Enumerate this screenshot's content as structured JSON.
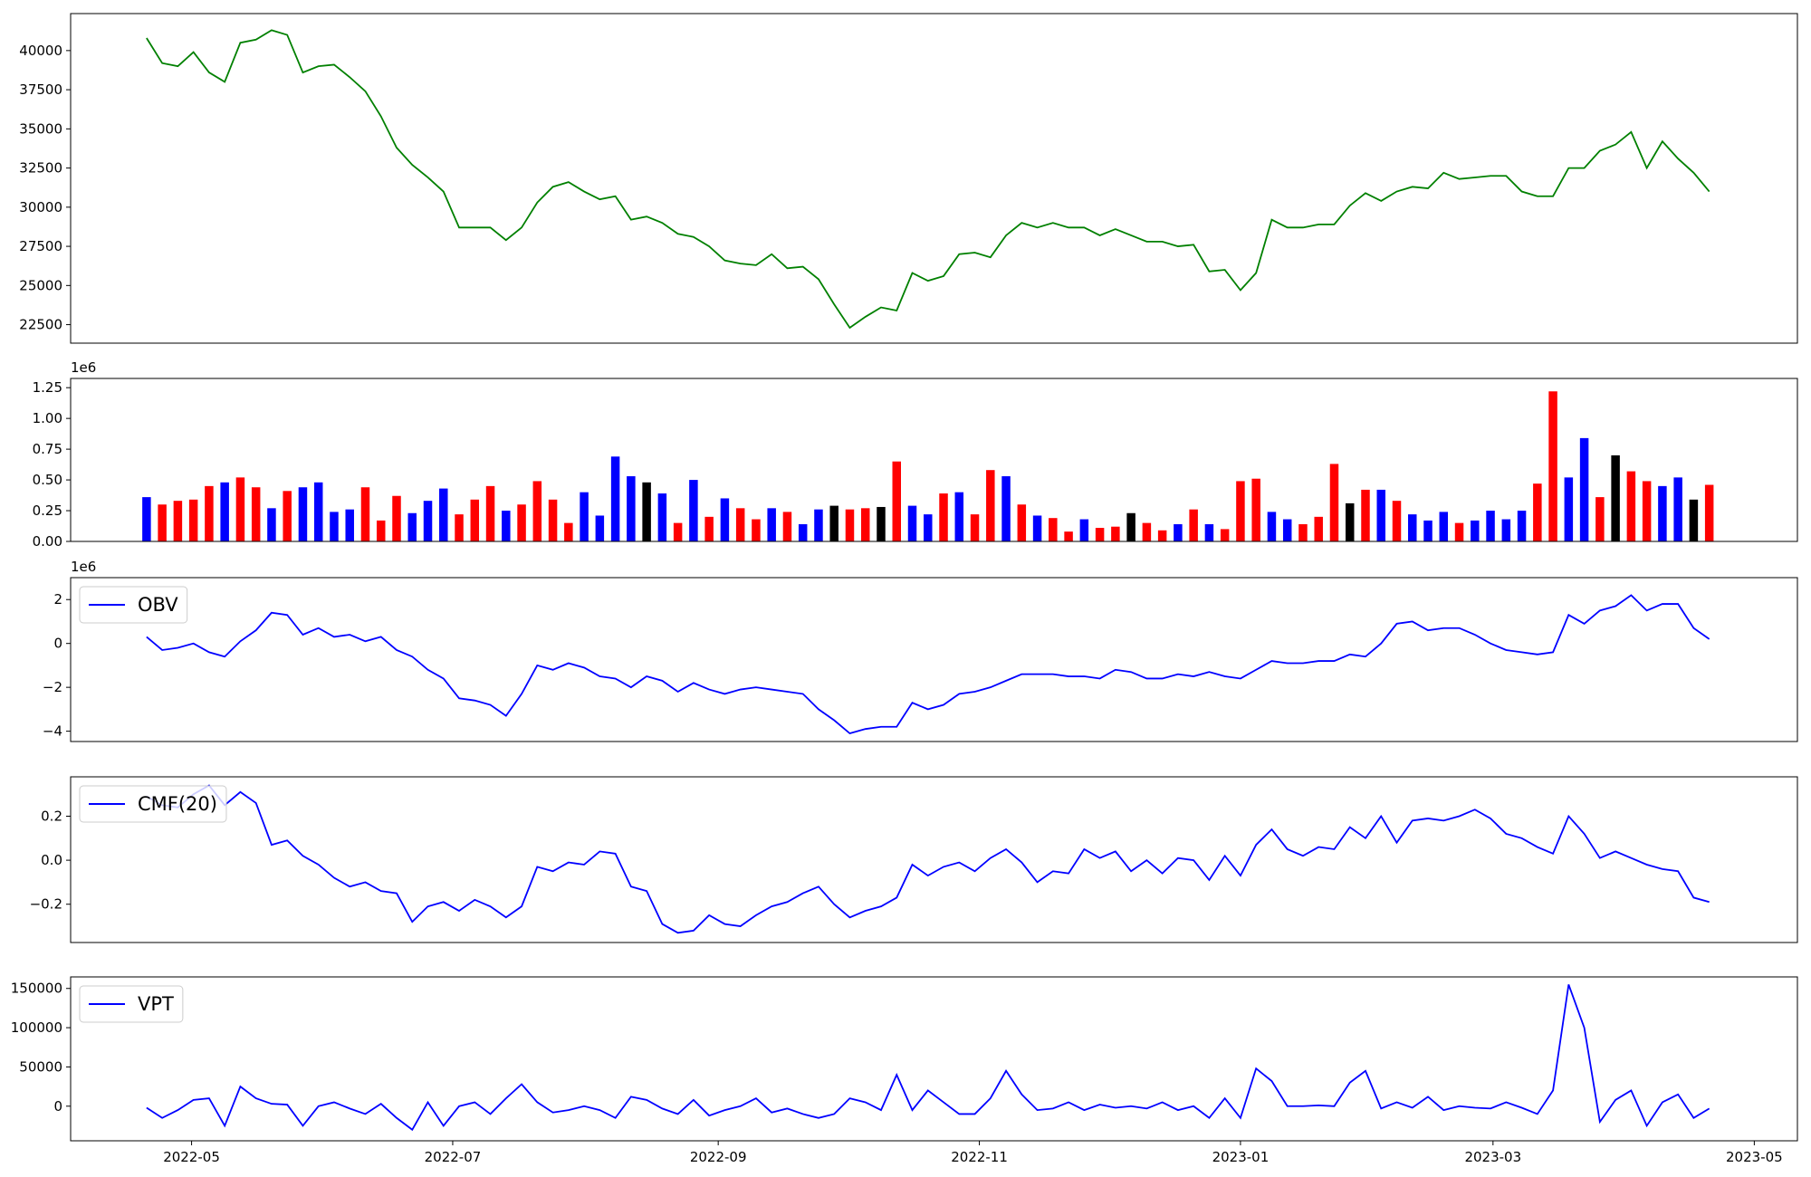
{
  "chart_data": {
    "type": "multi-panel",
    "x": [
      2022.3,
      2022.31,
      2022.32,
      2022.33,
      2022.34,
      2022.35,
      2022.36,
      2022.37,
      2022.38,
      2022.39,
      2022.4,
      2022.41,
      2022.42,
      2022.43,
      2022.44,
      2022.45,
      2022.46,
      2022.47,
      2022.48,
      2022.49,
      2022.5,
      2022.51,
      2022.52,
      2022.53,
      2022.54,
      2022.55,
      2022.56,
      2022.57,
      2022.58,
      2022.59,
      2022.6,
      2022.61,
      2022.62,
      2022.63,
      2022.64,
      2022.65,
      2022.66,
      2022.67,
      2022.68,
      2022.69,
      2022.7,
      2022.71,
      2022.72,
      2022.73,
      2022.74,
      2022.75,
      2022.76,
      2022.77,
      2022.78,
      2022.79,
      2022.8,
      2022.81,
      2022.82,
      2022.83,
      2022.84,
      2022.85,
      2022.86,
      2022.87,
      2022.88,
      2022.89,
      2022.9,
      2022.91,
      2022.92,
      2022.93,
      2022.94,
      2022.95,
      2022.96,
      2022.97,
      2022.98,
      2022.99,
      2023,
      2023.01,
      2023.02,
      2023.03,
      2023.04,
      2023.05,
      2023.06,
      2023.07,
      2023.08,
      2023.09,
      2023.1,
      2023.11,
      2023.12,
      2023.13,
      2023.14,
      2023.15,
      2023.16,
      2023.17,
      2023.18,
      2023.19,
      2023.2,
      2023.21,
      2023.22,
      2023.23,
      2023.24,
      2023.25,
      2023.26,
      2023.27,
      2023.28,
      2023.29,
      2023.3
    ],
    "xlim": [
      2022.2514,
      2023.3564
    ],
    "xticks": [
      {
        "value": 2022.3288,
        "label": "2022-05"
      },
      {
        "value": 2022.4959,
        "label": "2022-07"
      },
      {
        "value": 2022.6658,
        "label": "2022-09"
      },
      {
        "value": 2022.8329,
        "label": "2022-11"
      },
      {
        "value": 2023.0,
        "label": "2023-01"
      },
      {
        "value": 2023.1616,
        "label": "2023-03"
      },
      {
        "value": 2023.3288,
        "label": "2023-05"
      }
    ],
    "panels": [
      {
        "type": "line",
        "ylim": [
          21319,
          42362
        ],
        "yticks": [
          22500,
          25000,
          27500,
          30000,
          32500,
          35000,
          37500,
          40000
        ],
        "series": [
          {
            "color": "#008000",
            "values": [
              40800,
              39200,
              39000,
              39900,
              38600,
              38000,
              40500,
              40700,
              41300,
              41000,
              38600,
              39000,
              39100,
              38300,
              37400,
              35800,
              33800,
              32700,
              31900,
              31000,
              28700,
              28700,
              28700,
              27900,
              28700,
              30300,
              31300,
              31600,
              31000,
              30500,
              30700,
              29200,
              29400,
              29000,
              28300,
              28100,
              27500,
              26600,
              26400,
              26300,
              27000,
              26100,
              26200,
              25400,
              23800,
              22300,
              23000,
              23600,
              23400,
              25800,
              25300,
              25600,
              27000,
              27100,
              26800,
              28200,
              29000,
              28700,
              29000,
              28700,
              28700,
              28200,
              28600,
              28200,
              27800,
              27800,
              27500,
              27600,
              25900,
              26000,
              24700,
              25800,
              29200,
              28700,
              28700,
              28900,
              28900,
              30100,
              30900,
              30400,
              31000,
              31300,
              31200,
              32200,
              31800,
              31900,
              32000,
              32000,
              31000,
              30700,
              30700,
              32500,
              32500,
              33600,
              34000,
              34800,
              32500,
              34200,
              33100,
              32200,
              31000
            ]
          }
        ]
      },
      {
        "type": "bar",
        "ylim": [
          0,
          1325000
        ],
        "offset_label": "1e6",
        "yticks": [
          {
            "value": 0,
            "label": "0.00"
          },
          {
            "value": 250000,
            "label": "0.25"
          },
          {
            "value": 500000,
            "label": "0.50"
          },
          {
            "value": 750000,
            "label": "0.75"
          },
          {
            "value": 1000000,
            "label": "1.00"
          },
          {
            "value": 1250000,
            "label": "1.25"
          }
        ],
        "series": [
          {
            "values": [
              360000,
              300000,
              330000,
              340000,
              450000,
              480000,
              520000,
              440000,
              270000,
              410000,
              440000,
              480000,
              240000,
              260000,
              440000,
              170000,
              370000,
              230000,
              330000,
              430000,
              220000,
              340000,
              450000,
              250000,
              300000,
              490000,
              340000,
              150000,
              400000,
              210000,
              690000,
              530000,
              480000,
              390000,
              150000,
              500000,
              200000,
              350000,
              270000,
              180000,
              270000,
              240000,
              140000,
              260000,
              290000,
              260000,
              270000,
              280000,
              650000,
              290000,
              220000,
              390000,
              400000,
              220000,
              580000,
              530000,
              300000,
              210000,
              190000,
              80000,
              180000,
              110000,
              120000,
              230000,
              150000,
              90000,
              140000,
              260000,
              140000,
              100000,
              490000,
              510000,
              240000,
              180000,
              140000,
              200000,
              630000,
              310000,
              420000,
              420000,
              330000,
              220000,
              170000,
              240000,
              150000,
              170000,
              250000,
              180000,
              250000,
              470000,
              1220000,
              520000,
              840000,
              360000,
              700000,
              570000,
              490000,
              450000,
              520000,
              340000,
              460000
            ],
            "colors": [
              "blue",
              "red",
              "red",
              "red",
              "red",
              "blue",
              "red",
              "red",
              "blue",
              "red",
              "blue",
              "blue",
              "blue",
              "blue",
              "red",
              "red",
              "red",
              "blue",
              "blue",
              "blue",
              "red",
              "red",
              "red",
              "blue",
              "red",
              "red",
              "red",
              "red",
              "blue",
              "blue",
              "blue",
              "blue",
              "black",
              "blue",
              "red",
              "blue",
              "red",
              "blue",
              "red",
              "red",
              "blue",
              "red",
              "blue",
              "blue",
              "black",
              "red",
              "red",
              "black",
              "red",
              "blue",
              "blue",
              "red",
              "blue",
              "red",
              "red",
              "blue",
              "red",
              "blue",
              "red",
              "red",
              "blue",
              "red",
              "red",
              "black",
              "red",
              "red",
              "blue",
              "red",
              "blue",
              "red",
              "red",
              "red",
              "blue",
              "blue",
              "red",
              "red",
              "red",
              "black",
              "red",
              "blue",
              "red",
              "blue",
              "blue",
              "blue",
              "red",
              "blue",
              "blue",
              "blue",
              "blue",
              "red",
              "red",
              "blue",
              "blue",
              "red",
              "black",
              "red",
              "red",
              "blue",
              "blue",
              "black",
              "red"
            ]
          }
        ]
      },
      {
        "type": "line",
        "ylim": [
          -4470000,
          3000000
        ],
        "offset_label": "1e6",
        "legend": "upper left",
        "yticks": [
          {
            "value": -4000000,
            "label": "−4"
          },
          {
            "value": -2000000,
            "label": "−2"
          },
          {
            "value": 0,
            "label": "0"
          },
          {
            "value": 2000000,
            "label": "2"
          }
        ],
        "series": [
          {
            "name": "OBV",
            "color": "#0000ff",
            "values": [
              300000,
              -300000,
              -200000,
              0,
              -400000,
              -600000,
              100000,
              600000,
              1400000,
              1300000,
              400000,
              700000,
              300000,
              400000,
              100000,
              300000,
              -300000,
              -600000,
              -1200000,
              -1600000,
              -2500000,
              -2600000,
              -2800000,
              -3300000,
              -2300000,
              -1000000,
              -1200000,
              -900000,
              -1100000,
              -1500000,
              -1600000,
              -2000000,
              -1500000,
              -1700000,
              -2200000,
              -1800000,
              -2100000,
              -2300000,
              -2100000,
              -2000000,
              -2100000,
              -2200000,
              -2300000,
              -3000000,
              -3500000,
              -4100000,
              -3900000,
              -3800000,
              -3800000,
              -2700000,
              -3000000,
              -2800000,
              -2300000,
              -2200000,
              -2000000,
              -1700000,
              -1400000,
              -1400000,
              -1400000,
              -1500000,
              -1500000,
              -1600000,
              -1200000,
              -1300000,
              -1600000,
              -1600000,
              -1400000,
              -1500000,
              -1300000,
              -1500000,
              -1600000,
              -1200000,
              -800000,
              -900000,
              -900000,
              -800000,
              -800000,
              -500000,
              -600000,
              0,
              900000,
              1000000,
              600000,
              700000,
              700000,
              400000,
              0,
              -300000,
              -400000,
              -500000,
              -400000,
              1300000,
              900000,
              1500000,
              1700000,
              2200000,
              1500000,
              1800000,
              1800000,
              700000,
              200000
            ]
          }
        ]
      },
      {
        "type": "line",
        "ylim": [
          -0.374,
          0.379
        ],
        "legend": "upper left",
        "yticks": [
          {
            "value": -0.2,
            "label": "−0.2"
          },
          {
            "value": 0,
            "label": "0.0"
          },
          0.2
        ],
        "series": [
          {
            "name": "CMF(20)",
            "color": "#0000ff",
            "values": [
              0.29,
              0.25,
              0.24,
              0.3,
              0.34,
              0.25,
              0.31,
              0.26,
              0.07,
              0.09,
              0.02,
              -0.02,
              -0.08,
              -0.12,
              -0.1,
              -0.14,
              -0.15,
              -0.28,
              -0.21,
              -0.19,
              -0.23,
              -0.18,
              -0.21,
              -0.26,
              -0.21,
              -0.03,
              -0.05,
              -0.01,
              -0.02,
              0.04,
              0.03,
              -0.12,
              -0.14,
              -0.29,
              -0.33,
              -0.32,
              -0.25,
              -0.29,
              -0.3,
              -0.25,
              -0.21,
              -0.19,
              -0.15,
              -0.12,
              -0.2,
              -0.26,
              -0.23,
              -0.21,
              -0.17,
              -0.02,
              -0.07,
              -0.03,
              -0.01,
              -0.05,
              0.01,
              0.05,
              -0.01,
              -0.1,
              -0.05,
              -0.06,
              0.05,
              0.01,
              0.04,
              -0.05,
              0,
              -0.06,
              0.01,
              0,
              -0.09,
              0.02,
              -0.07,
              0.07,
              0.14,
              0.05,
              0.02,
              0.06,
              0.05,
              0.15,
              0.1,
              0.2,
              0.08,
              0.18,
              0.19,
              0.18,
              0.2,
              0.23,
              0.19,
              0.12,
              0.1,
              0.06,
              0.03,
              0.2,
              0.12,
              0.01,
              0.04,
              0.01,
              -0.02,
              -0.04,
              -0.05,
              -0.17,
              -0.19
            ]
          }
        ]
      },
      {
        "type": "line",
        "ylim": [
          -44100,
          164700
        ],
        "legend": "upper left",
        "yticks": [
          0,
          50000,
          100000,
          150000
        ],
        "series": [
          {
            "name": "VPT",
            "color": "#0000ff",
            "values": [
              -2000,
              -15000,
              -5000,
              8000,
              10000,
              -25000,
              25000,
              10000,
              3000,
              2000,
              -25000,
              0,
              5000,
              -3000,
              -10000,
              3000,
              -15000,
              -30000,
              5000,
              -25000,
              0,
              5000,
              -10000,
              10000,
              28000,
              5000,
              -8000,
              -5000,
              0,
              -5000,
              -15000,
              12000,
              8000,
              -3000,
              -10000,
              8000,
              -12000,
              -5000,
              0,
              10000,
              -8000,
              -3000,
              -10000,
              -15000,
              -10000,
              10000,
              5000,
              -5000,
              40000,
              -5000,
              20000,
              5000,
              -10000,
              -10000,
              10000,
              45000,
              15000,
              -5000,
              -3000,
              5000,
              -5000,
              2000,
              -2000,
              0,
              -3000,
              5000,
              -5000,
              0,
              -15000,
              10000,
              -15000,
              48000,
              32000,
              0,
              0,
              1000,
              0,
              30000,
              45000,
              -3000,
              5000,
              -2000,
              12000,
              -5000,
              0,
              -2000,
              -3000,
              5000,
              -2000,
              -10000,
              20000,
              155000,
              100000,
              -20000,
              8000,
              20000,
              -25000,
              5000,
              15000,
              -15000,
              -3000
            ]
          }
        ]
      }
    ]
  }
}
